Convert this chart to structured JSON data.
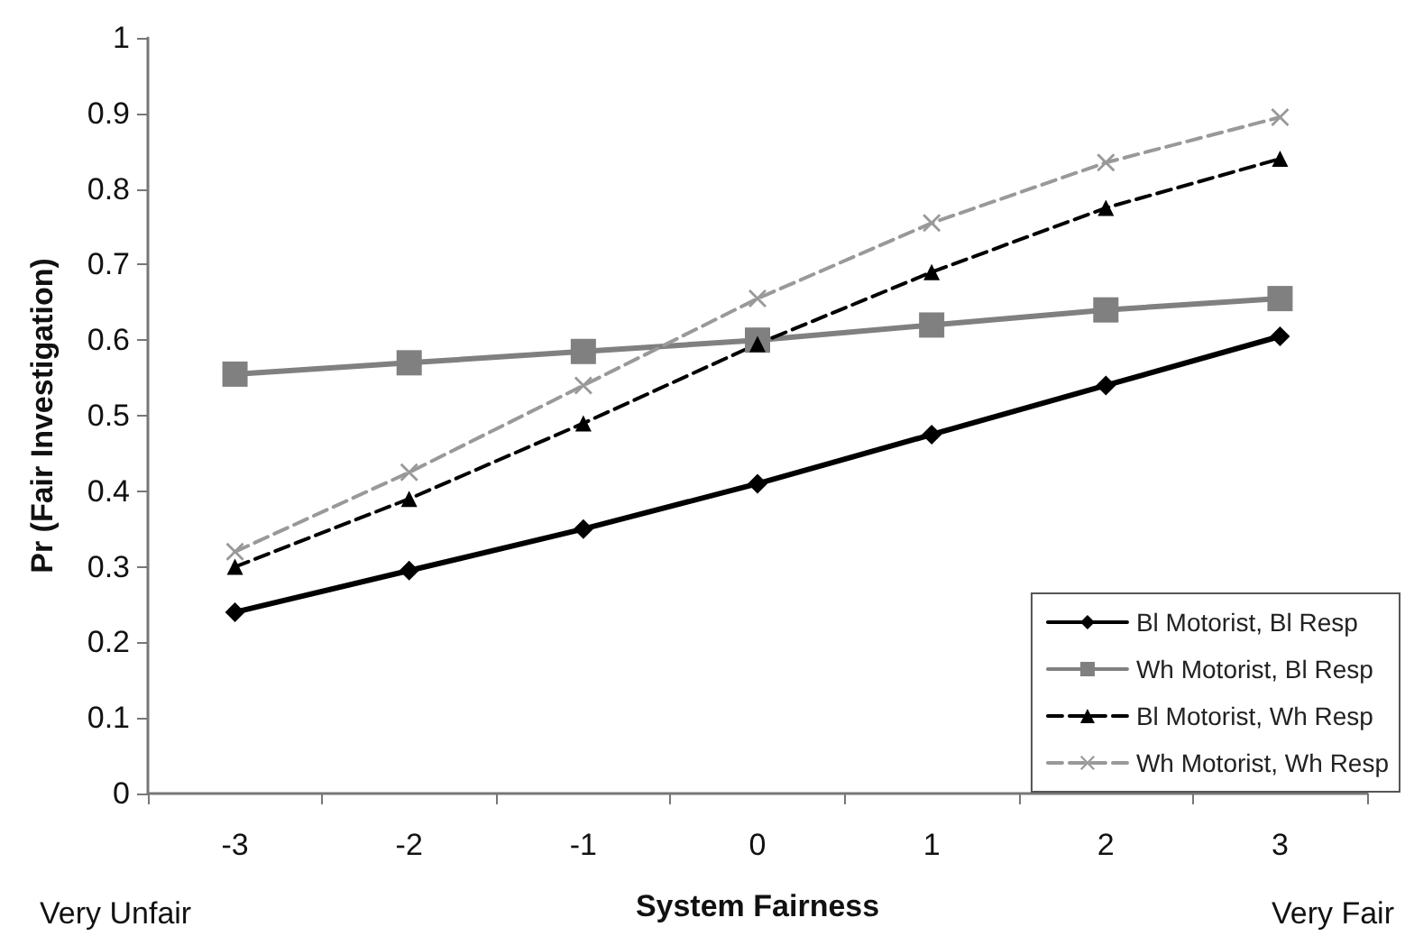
{
  "chart_data": {
    "type": "line",
    "xlabel": "System Fairness",
    "ylabel": "Pr (Fair Investigation)",
    "categories": [
      "-3",
      "-2",
      "-1",
      "0",
      "1",
      "2",
      "3"
    ],
    "ylim": [
      0,
      1
    ],
    "yticks": [
      0,
      0.1,
      0.2,
      0.3,
      0.4,
      0.5,
      0.6,
      0.7,
      0.8,
      0.9,
      1
    ],
    "grid": false,
    "legend": "bottom right",
    "annotations": [
      "Very Unfair",
      "Very Fair"
    ],
    "series": [
      {
        "name": "Bl Motorist, Bl Resp",
        "color": "#000000",
        "marker": "diamond",
        "line_style": "solid",
        "values": [
          0.24,
          0.295,
          0.35,
          0.41,
          0.475,
          0.54,
          0.605
        ]
      },
      {
        "name": "Wh Motorist, Bl Resp",
        "color": "#808080",
        "marker": "square",
        "line_style": "solid",
        "values": [
          0.555,
          0.57,
          0.585,
          0.6,
          0.62,
          0.64,
          0.655
        ]
      },
      {
        "name": "Bl Motorist, Wh Resp",
        "color": "#000000",
        "marker": "triangle",
        "line_style": "dashed",
        "values": [
          0.3,
          0.39,
          0.49,
          0.595,
          0.69,
          0.775,
          0.84
        ]
      },
      {
        "name": "Wh Motorist, Wh Resp",
        "color": "#999999",
        "marker": "cross",
        "line_style": "dashed",
        "values": [
          0.32,
          0.425,
          0.54,
          0.655,
          0.755,
          0.835,
          0.895
        ]
      }
    ]
  }
}
